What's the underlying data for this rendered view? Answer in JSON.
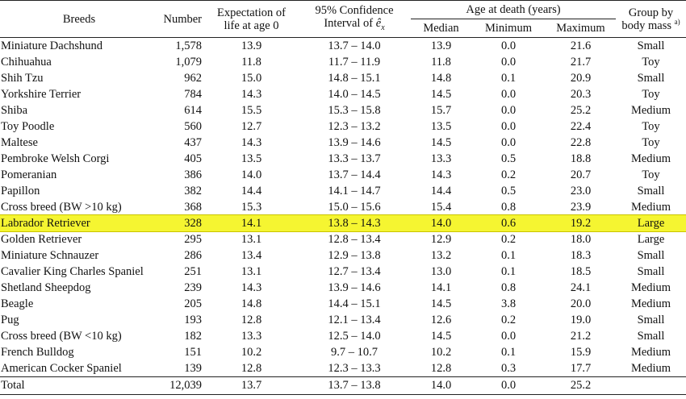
{
  "headers": {
    "breeds": "Breeds",
    "number": "Number",
    "expectation_line1": "Expectation of",
    "expectation_line2": "life at age 0",
    "ci_line1": "95% Confidence",
    "ci_line2_prefix": "Interval of ",
    "ci_symbol": "ê",
    "ci_subscript": "x",
    "age_group": "Age at death (years)",
    "median": "Median",
    "minimum": "Minimum",
    "maximum": "Maximum",
    "group_line1": "Group by",
    "group_line2": "body mass",
    "group_footnote": "a)"
  },
  "rows": [
    {
      "breed": "Miniature Dachshund",
      "number": "1,578",
      "life": "13.9",
      "ci": "13.7 – 14.0",
      "median": "13.9",
      "min": "0.0",
      "max": "21.6",
      "group": "Small"
    },
    {
      "breed": "Chihuahua",
      "number": "1,079",
      "life": "11.8",
      "ci": "11.7 – 11.9",
      "median": "11.8",
      "min": "0.0",
      "max": "21.7",
      "group": "Toy"
    },
    {
      "breed": "Shih Tzu",
      "number": "962",
      "life": "15.0",
      "ci": "14.8 – 15.1",
      "median": "14.8",
      "min": "0.1",
      "max": "20.9",
      "group": "Small"
    },
    {
      "breed": "Yorkshire Terrier",
      "number": "784",
      "life": "14.3",
      "ci": "14.0 – 14.5",
      "median": "14.5",
      "min": "0.0",
      "max": "20.3",
      "group": "Toy"
    },
    {
      "breed": "Shiba",
      "number": "614",
      "life": "15.5",
      "ci": "15.3 – 15.8",
      "median": "15.7",
      "min": "0.0",
      "max": "25.2",
      "group": "Medium"
    },
    {
      "breed": "Toy Poodle",
      "number": "560",
      "life": "12.7",
      "ci": "12.3 – 13.2",
      "median": "13.5",
      "min": "0.0",
      "max": "22.4",
      "group": "Toy"
    },
    {
      "breed": "Maltese",
      "number": "437",
      "life": "14.3",
      "ci": "13.9 – 14.6",
      "median": "14.5",
      "min": "0.0",
      "max": "22.8",
      "group": "Toy"
    },
    {
      "breed": "Pembroke Welsh Corgi",
      "number": "405",
      "life": "13.5",
      "ci": "13.3 – 13.7",
      "median": "13.3",
      "min": "0.5",
      "max": "18.8",
      "group": "Medium"
    },
    {
      "breed": "Pomeranian",
      "number": "386",
      "life": "14.0",
      "ci": "13.7 – 14.4",
      "median": "14.3",
      "min": "0.2",
      "max": "20.7",
      "group": "Toy"
    },
    {
      "breed": "Papillon",
      "number": "382",
      "life": "14.4",
      "ci": "14.1 – 14.7",
      "median": "14.4",
      "min": "0.5",
      "max": "23.0",
      "group": "Small"
    },
    {
      "breed": "Cross breed (BW >10 kg)",
      "number": "368",
      "life": "15.3",
      "ci": "15.0 – 15.6",
      "median": "15.4",
      "min": "0.8",
      "max": "23.9",
      "group": "Medium"
    },
    {
      "breed": "Labrador Retriever",
      "number": "328",
      "life": "14.1",
      "ci": "13.8 – 14.3",
      "median": "14.0",
      "min": "0.6",
      "max": "19.2",
      "group": "Large",
      "highlight": true
    },
    {
      "breed": "Golden Retriever",
      "number": "295",
      "life": "13.1",
      "ci": "12.8 – 13.4",
      "median": "12.9",
      "min": "0.2",
      "max": "18.0",
      "group": "Large"
    },
    {
      "breed": "Miniature Schnauzer",
      "number": "286",
      "life": "13.4",
      "ci": "12.9 – 13.8",
      "median": "13.2",
      "min": "0.1",
      "max": "18.3",
      "group": "Small"
    },
    {
      "breed": "Cavalier King Charles Spaniel",
      "number": "251",
      "life": "13.1",
      "ci": "12.7 – 13.4",
      "median": "13.0",
      "min": "0.1",
      "max": "18.5",
      "group": "Small"
    },
    {
      "breed": "Shetland Sheepdog",
      "number": "239",
      "life": "14.3",
      "ci": "13.9 – 14.6",
      "median": "14.1",
      "min": "0.8",
      "max": "24.1",
      "group": "Medium"
    },
    {
      "breed": "Beagle",
      "number": "205",
      "life": "14.8",
      "ci": "14.4 – 15.1",
      "median": "14.5",
      "min": "3.8",
      "max": "20.0",
      "group": "Medium"
    },
    {
      "breed": "Pug",
      "number": "193",
      "life": "12.8",
      "ci": "12.1 – 13.4",
      "median": "12.6",
      "min": "0.2",
      "max": "19.0",
      "group": "Small"
    },
    {
      "breed": "Cross breed (BW <10 kg)",
      "number": "182",
      "life": "13.3",
      "ci": "12.5 – 14.0",
      "median": "14.5",
      "min": "0.0",
      "max": "21.2",
      "group": "Small"
    },
    {
      "breed": "French Bulldog",
      "number": "151",
      "life": "10.2",
      "ci": "9.7 – 10.7",
      "median": "10.2",
      "min": "0.1",
      "max": "15.9",
      "group": "Medium"
    },
    {
      "breed": "American Cocker Spaniel",
      "number": "139",
      "life": "12.8",
      "ci": "12.3 – 13.3",
      "median": "12.8",
      "min": "0.3",
      "max": "17.7",
      "group": "Medium"
    }
  ],
  "total": {
    "breed": "Total",
    "number": "12,039",
    "life": "13.7",
    "ci": "13.7 – 13.8",
    "median": "14.0",
    "min": "0.0",
    "max": "25.2",
    "group": ""
  },
  "colors": {
    "highlight": "#f5f531",
    "rule": "#222222"
  }
}
